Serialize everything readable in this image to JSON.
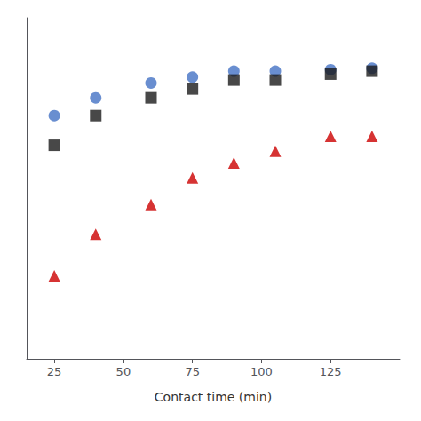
{
  "chart_data": {
    "type": "scatter",
    "xlabel": "Contact time (min)",
    "xlim": [
      15,
      150
    ],
    "xticks": [
      25,
      50,
      75,
      100,
      125
    ],
    "ylim": [
      0,
      115
    ],
    "tick_labels": "x",
    "grid": false,
    "series": [
      {
        "color": "#4472C4",
        "marker": "circle",
        "x": [
          25,
          40,
          60,
          75,
          90,
          105,
          125,
          140
        ],
        "values": [
          82,
          88,
          93,
          95,
          97,
          97,
          97.5,
          98
        ]
      },
      {
        "color": "#1a1a1a",
        "marker": "square",
        "x": [
          25,
          40,
          60,
          75,
          90,
          105,
          125,
          140
        ],
        "values": [
          72,
          82,
          88,
          91,
          94,
          94,
          96,
          97
        ]
      },
      {
        "color": "#CC0000",
        "marker": "triangle",
        "x": [
          25,
          40,
          60,
          75,
          90,
          105,
          125,
          140
        ],
        "values": [
          28,
          42,
          52,
          61,
          66,
          70,
          75,
          75
        ]
      }
    ]
  }
}
